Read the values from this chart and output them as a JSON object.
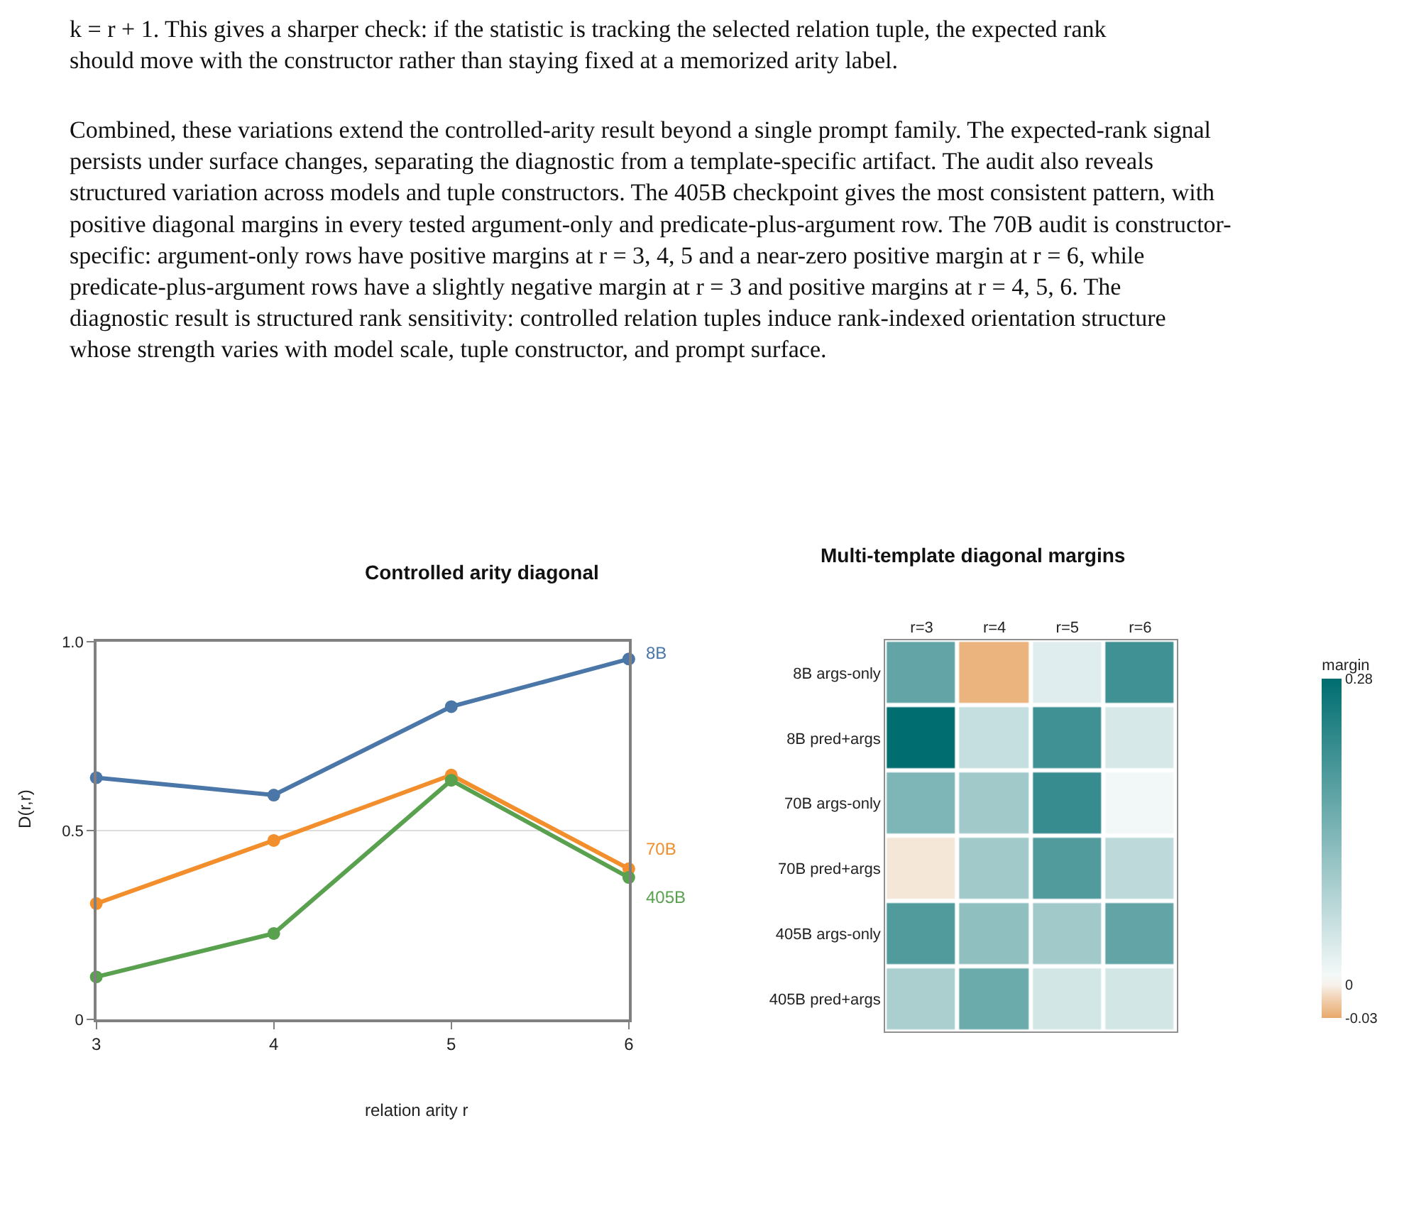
{
  "chart_data": [
    {
      "type": "line",
      "title": "Controlled arity diagonal",
      "xlabel": "relation arity r",
      "ylabel": "D(r,r)",
      "x": [
        3,
        4,
        5,
        6
      ],
      "series": [
        {
          "name": "8B",
          "color": "#4a76a8",
          "values": [
            0.64,
            0.594,
            0.828,
            0.954
          ]
        },
        {
          "name": "70B",
          "color": "#f28e2b",
          "values": [
            0.307,
            0.474,
            0.647,
            0.399
          ]
        },
        {
          "name": "405B",
          "color": "#59a14f",
          "values": [
            0.113,
            0.228,
            0.633,
            0.376
          ]
        }
      ],
      "xlim": [
        3,
        6
      ],
      "xticks": [
        3,
        4,
        5,
        6
      ],
      "ylim": [
        0,
        1
      ],
      "yticks": [
        0,
        {
          "value": 0.5,
          "label": "0.5"
        },
        {
          "value": 1,
          "label": "1.0"
        }
      ],
      "grid": "y",
      "marker": "circle",
      "line_style": "solid",
      "annotations": [
        "k = r + 1. This gives a sharper check: if the statistic is tracking the selected relation tuple, the expected rank should move with the constructor rather than staying fixed at a memorized arity label.",
        "Combined, these variations extend the controlled-arity result beyond a single prompt family. The expected-rank signal persists under surface changes, separating the diagnostic from a template-specific artifact. The audit also reveals structured variation across models and tuple constructors. The 405B checkpoint gives the most consistent pattern, with positive diagonal margins in every tested argument-only and predicate-plus-argument row. The 70B audit is constructor-specific: argument-only rows have positive margins at r = 3, 4, 5 and a near-zero positive margin at r = 6, while predicate-plus-argument rows have a slightly negative margin at r = 3 and positive margins at r = 4, 5, 6. The diagnostic result is structured rank sensitivity: controlled relation tuples induce rank-indexed orientation structure whose strength varies with model scale, tuple constructor, and prompt surface."
      ]
    },
    {
      "type": "heatmap",
      "title": "Multi-template diagonal margins",
      "clabel": "margin",
      "categories": [
        "r=3",
        "r=4",
        "r=5",
        "r=6"
      ],
      "y_categories": [
        "8B args-only",
        "8B pred+args",
        "70B args-only",
        "70B pred+args",
        "405B args-only",
        "405B pred+args"
      ],
      "cells": [
        [
          0.17,
          -0.025,
          0.03,
          0.21
        ],
        [
          0.28,
          0.06,
          0.21,
          0.04
        ],
        [
          0.14,
          0.1,
          0.22,
          0.01
        ],
        [
          -0.004,
          0.1,
          0.19,
          0.07
        ],
        [
          0.19,
          0.12,
          0.1,
          0.17
        ],
        [
          0.09,
          0.16,
          0.045,
          0.045
        ]
      ],
      "clim": [
        -0.03,
        0.28
      ],
      "cticks": [
        -0.03,
        0,
        0.28
      ]
    }
  ]
}
